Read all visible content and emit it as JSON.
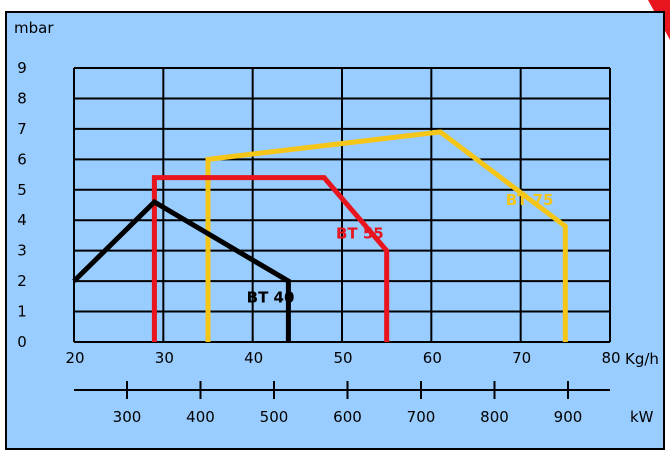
{
  "chart_data": {
    "type": "line",
    "y_unit": "mbar",
    "x_unit": "Kg/h",
    "secondary_unit": "kW",
    "ylim": [
      0,
      9
    ],
    "xlim": [
      20,
      80
    ],
    "y_ticks": [
      "0",
      "1",
      "2",
      "3",
      "4",
      "5",
      "6",
      "7",
      "8",
      "9"
    ],
    "x_ticks": [
      "20",
      "30",
      "40",
      "50",
      "60",
      "70",
      "80"
    ],
    "x_tick_values": [
      20,
      30,
      40,
      50,
      60,
      70,
      80
    ],
    "secondary_ticks": [
      "300",
      "400",
      "500",
      "600",
      "700",
      "800",
      "900"
    ],
    "secondary_tick_values": [
      300,
      400,
      500,
      600,
      700,
      800,
      900
    ],
    "grid": true,
    "series": [
      {
        "name": "BT 40",
        "color": "#000000",
        "points": [
          [
            20,
            2.0
          ],
          [
            29,
            4.6
          ],
          [
            44,
            2.0
          ],
          [
            44,
            0
          ]
        ]
      },
      {
        "name": "BT 55",
        "color": "#e8141e",
        "points": [
          [
            29,
            0
          ],
          [
            29,
            5.4
          ],
          [
            48,
            5.4
          ],
          [
            55,
            3.0
          ],
          [
            55,
            0
          ]
        ]
      },
      {
        "name": "BT 75",
        "color": "#f5c518",
        "points": [
          [
            35,
            0
          ],
          [
            35,
            6.0
          ],
          [
            61,
            6.9
          ],
          [
            75,
            3.8
          ],
          [
            75,
            0
          ]
        ]
      }
    ],
    "series_labels": [
      {
        "series": "BT 40",
        "text": "BT 40",
        "x": 42,
        "y": 1.3,
        "color": "#000000"
      },
      {
        "series": "BT 55",
        "text": "BT 55",
        "x": 52,
        "y": 3.4,
        "color": "#e8141e"
      },
      {
        "series": "BT 75",
        "text": "BT 75",
        "x": 71,
        "y": 4.5,
        "color": "#f5c518"
      }
    ]
  },
  "colors": {
    "background": "#99ccff",
    "frame": "#000000",
    "corner_accent": "#e8141e"
  }
}
